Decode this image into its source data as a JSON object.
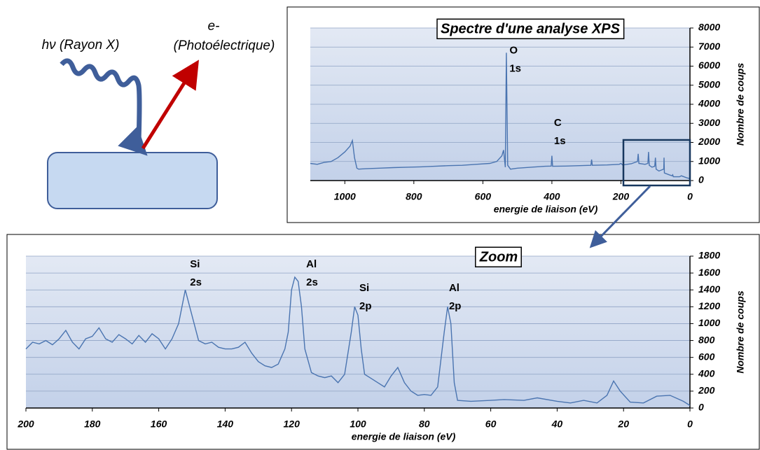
{
  "diagram": {
    "photon_label": "hν (Rayon X)",
    "electron_label": [
      "e-",
      "(Photoélectrique)"
    ]
  },
  "chart_data": [
    {
      "type": "line",
      "title": "Spectre d'une analyse XPS",
      "x_label": "energie de liaison (eV)",
      "y_label": "Nombre de coups",
      "color": "#4a74b0",
      "xlim": [
        1100,
        0
      ],
      "xticks": [
        1000,
        800,
        600,
        400,
        200,
        0
      ],
      "ylim": [
        0,
        8000
      ],
      "yticks": [
        0,
        1000,
        2000,
        3000,
        4000,
        5000,
        6000,
        7000,
        8000
      ],
      "grid": true,
      "x": [
        1100,
        1080,
        1060,
        1040,
        1020,
        1000,
        985,
        978,
        972,
        965,
        960,
        940,
        900,
        860,
        820,
        780,
        740,
        700,
        660,
        620,
        580,
        560,
        545,
        540,
        535,
        532,
        528,
        520,
        500,
        460,
        420,
        402,
        400,
        398,
        360,
        320,
        287,
        285,
        283,
        240,
        205,
        200,
        195,
        170,
        152,
        150,
        148,
        130,
        122,
        120,
        118,
        110,
        102,
        100,
        98,
        90,
        76,
        75,
        74,
        60,
        52,
        50,
        48,
        30,
        25,
        10,
        0
      ],
      "values": [
        900,
        850,
        950,
        1000,
        1200,
        1500,
        1800,
        2100,
        1200,
        650,
        600,
        620,
        650,
        680,
        700,
        720,
        750,
        780,
        800,
        850,
        900,
        1000,
        1300,
        1600,
        700,
        6700,
        800,
        600,
        650,
        700,
        750,
        760,
        1300,
        750,
        760,
        780,
        800,
        1100,
        800,
        820,
        850,
        900,
        820,
        880,
        1000,
        1400,
        900,
        850,
        900,
        1500,
        800,
        700,
        750,
        1200,
        600,
        500,
        600,
        1200,
        400,
        300,
        250,
        300,
        200,
        200,
        250,
        150,
        100
      ],
      "annotations": [
        {
          "text": [
            "O",
            "1s"
          ],
          "x": 527,
          "y": 6800
        },
        {
          "text": [
            "C",
            "1s"
          ],
          "x": 398,
          "y": 3000
        }
      ]
    },
    {
      "type": "line",
      "title": "Zoom",
      "x_label": "energie de liaison (eV)",
      "y_label": "Nombre de coups",
      "color": "#4a74b0",
      "xlim": [
        200,
        0
      ],
      "xticks": [
        200,
        180,
        160,
        140,
        120,
        100,
        80,
        60,
        40,
        20,
        0
      ],
      "ylim": [
        0,
        1800
      ],
      "yticks": [
        0,
        200,
        400,
        600,
        800,
        1000,
        1200,
        1400,
        1600,
        1800
      ],
      "grid": true,
      "x": [
        200,
        198,
        196,
        194,
        192,
        190,
        188,
        186,
        184,
        182,
        180,
        178,
        176,
        174,
        172,
        170,
        168,
        166,
        164,
        162,
        160,
        158,
        156,
        154,
        152,
        150,
        148,
        146,
        144,
        142,
        140,
        138,
        136,
        134,
        132,
        130,
        128,
        126,
        124,
        122,
        121,
        120,
        119,
        118,
        117,
        116,
        114,
        112,
        110,
        108,
        106,
        104,
        102,
        101,
        100,
        99,
        98,
        96,
        94,
        92,
        90,
        88,
        86,
        84,
        82,
        80,
        78,
        76,
        74,
        73,
        72,
        71,
        70,
        66,
        60,
        56,
        50,
        46,
        40,
        36,
        32,
        28,
        25,
        23,
        21,
        18,
        14,
        10,
        6,
        2,
        0
      ],
      "values": [
        700,
        780,
        760,
        800,
        750,
        820,
        920,
        780,
        700,
        820,
        850,
        950,
        820,
        780,
        870,
        820,
        760,
        860,
        780,
        880,
        820,
        700,
        820,
        1000,
        1400,
        1100,
        800,
        760,
        780,
        720,
        700,
        700,
        720,
        780,
        650,
        550,
        500,
        480,
        520,
        700,
        900,
        1400,
        1550,
        1500,
        1200,
        700,
        420,
        380,
        360,
        380,
        300,
        400,
        900,
        1200,
        1100,
        700,
        400,
        350,
        300,
        250,
        380,
        480,
        300,
        200,
        150,
        160,
        150,
        250,
        900,
        1200,
        1000,
        300,
        90,
        80,
        90,
        100,
        90,
        120,
        80,
        60,
        90,
        60,
        150,
        320,
        200,
        70,
        60,
        140,
        150,
        80,
        30
      ],
      "annotations": [
        {
          "text": [
            "Si",
            "2s"
          ],
          "x": 151,
          "y": 1700
        },
        {
          "text": [
            "Al",
            "2s"
          ],
          "x": 116,
          "y": 1700
        },
        {
          "text": [
            "Si",
            "2p"
          ],
          "x": 100,
          "y": 1420
        },
        {
          "text": [
            "Al",
            "2p"
          ],
          "x": 73,
          "y": 1420
        }
      ]
    }
  ]
}
